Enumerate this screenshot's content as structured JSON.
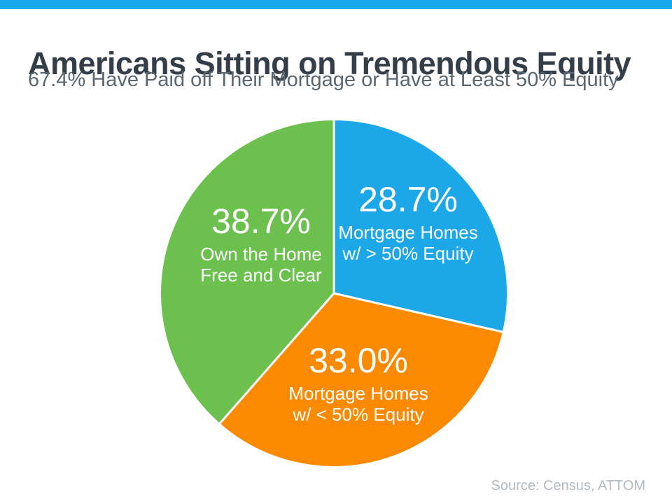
{
  "page": {
    "title": "Americans Sitting on Tremendous Equity",
    "subtitle": "67.4% Have Paid off Their Mortgage or Have at Least 50% Equity",
    "source": "Source: Census, ATTOM"
  },
  "colors": {
    "top_bar": "#17A9EC",
    "title": "#333E48",
    "subtitle": "#5A6771",
    "source": "#B3BAC1",
    "slice_label_text": "#FFFFFF"
  },
  "chart_data": {
    "type": "pie",
    "title": "Americans Sitting on Tremendous Equity",
    "subtitle": "67.4% Have Paid off Their Mortgage or Have at Least 50% Equity",
    "source": "Source: Census, ATTOM",
    "start_angle_deg": 0,
    "direction": "clockwise",
    "legend_position": "inside-slices",
    "slices": [
      {
        "id": "mortgage-gt50",
        "value": 28.7,
        "pct_label": "28.7%",
        "name_lines": [
          "Mortgage Homes",
          "w/ > 50% Equity"
        ],
        "color": "#1CA8E8"
      },
      {
        "id": "mortgage-lt50",
        "value": 33.0,
        "pct_label": "33.0%",
        "name_lines": [
          "Mortgage Homes",
          "w/ < 50% Equity"
        ],
        "color": "#FB8A00"
      },
      {
        "id": "free-and-clear",
        "value": 38.7,
        "pct_label": "38.7%",
        "name_lines": [
          "Own the Home",
          "Free and Clear"
        ],
        "color": "#6CC04E"
      }
    ]
  }
}
